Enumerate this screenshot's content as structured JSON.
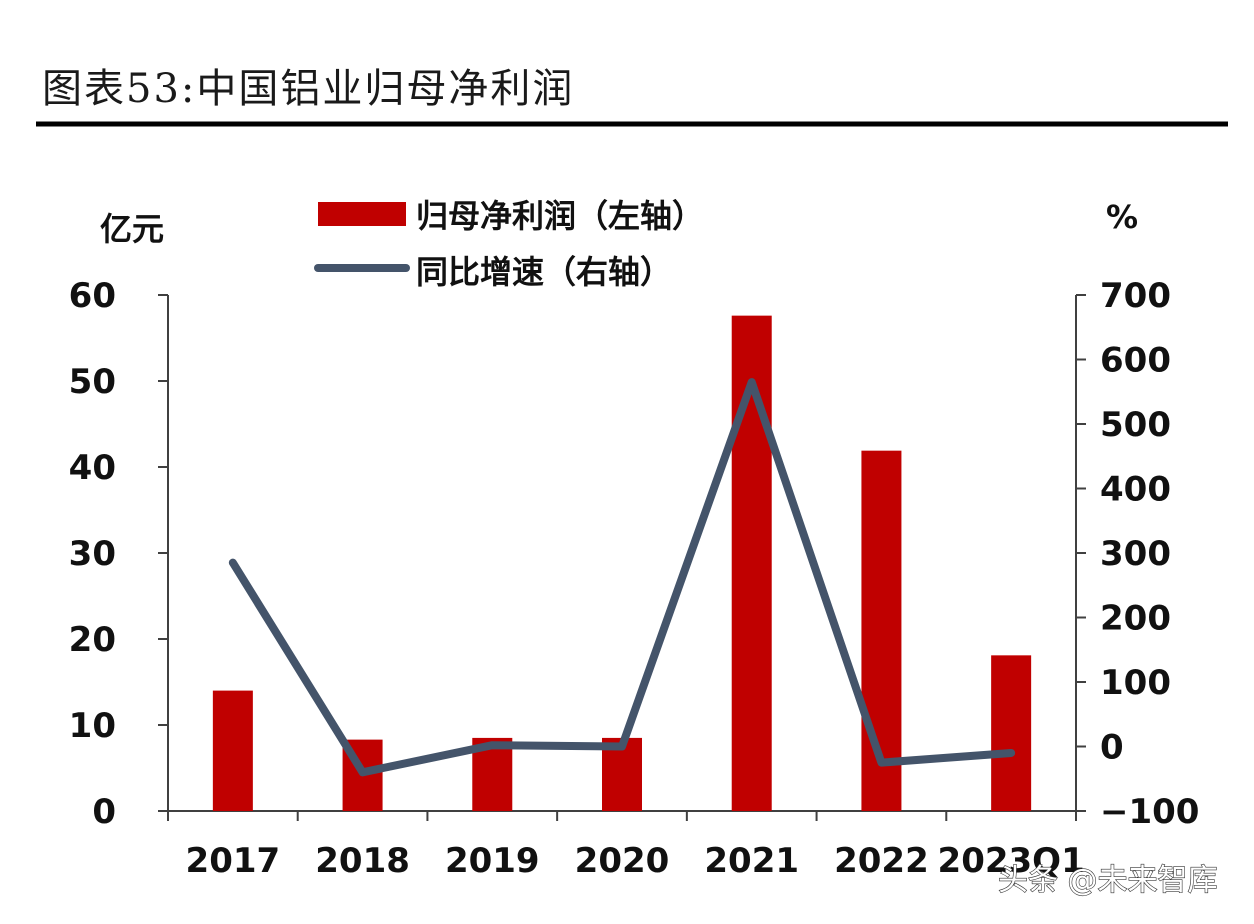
{
  "header": {
    "title": "图表53:中国铝业归母净利润"
  },
  "watermark": "头条 @未来智库",
  "colors": {
    "bar": "#C00000",
    "line": "#44546A",
    "axis": "#404040",
    "rule": "#000000"
  },
  "chart_data": {
    "type": "bar",
    "title": "",
    "categories": [
      "2017",
      "2018",
      "2019",
      "2020",
      "2021",
      "2022",
      "2023Q1"
    ],
    "ylabel": "亿元",
    "y2label": "%",
    "ylim": [
      0,
      60
    ],
    "y2lim": [
      -100,
      700
    ],
    "yticks": [
      "0",
      "10",
      "20",
      "30",
      "40",
      "50",
      "60"
    ],
    "y2ticks": [
      "−100",
      "0",
      "100",
      "200",
      "300",
      "400",
      "500",
      "600",
      "700"
    ],
    "legend_position": "top-center",
    "grid": false,
    "series": [
      {
        "name": "归母净利润（左轴）",
        "type": "bar",
        "axis": "left",
        "values": [
          14.0,
          8.3,
          8.5,
          8.5,
          57.6,
          41.9,
          18.1
        ]
      },
      {
        "name": "同比增速（右轴）",
        "type": "line",
        "axis": "right",
        "values": [
          285,
          -40,
          2,
          0,
          565,
          -25,
          -10
        ]
      }
    ]
  }
}
